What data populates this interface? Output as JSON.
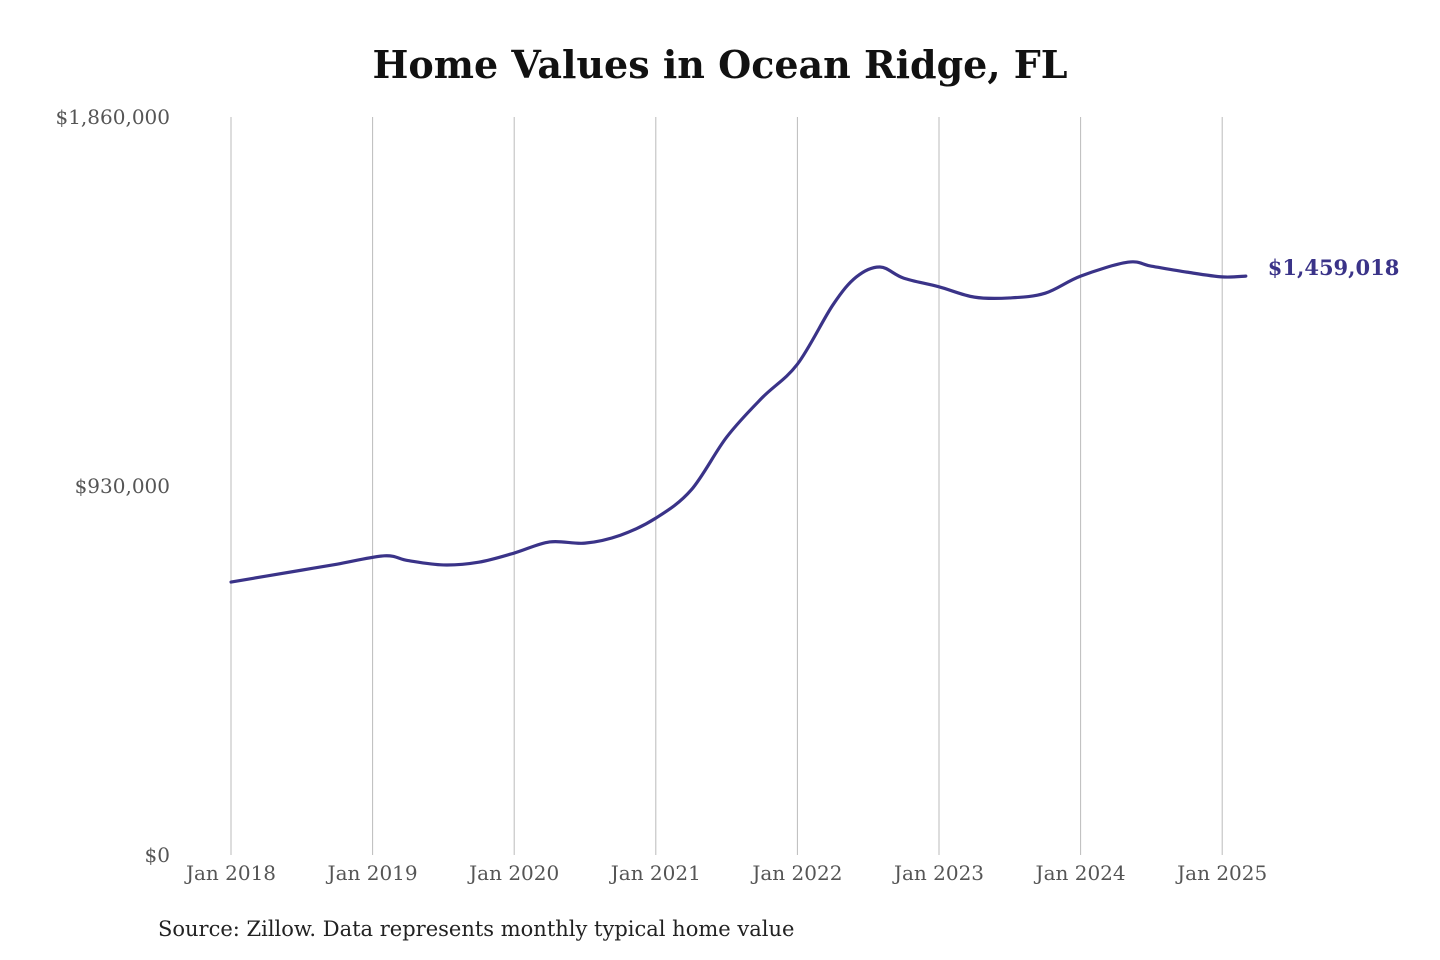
{
  "chart_data": {
    "type": "line",
    "title": "Home Values in Ocean Ridge, FL",
    "xlabel": "",
    "ylabel": "",
    "ylim": [
      0,
      1860000
    ],
    "y_ticks": [
      "$0",
      "$930,000",
      "$1,860,000"
    ],
    "y_tick_values": [
      0,
      930000,
      1860000
    ],
    "x_ticks": [
      "Jan 2018",
      "Jan 2019",
      "Jan 2020",
      "Jan 2021",
      "Jan 2022",
      "Jan 2023",
      "Jan 2024",
      "Jan 2025"
    ],
    "grid": "vertical",
    "legend": "none",
    "series": [
      {
        "name": "Typical home value",
        "color": "#3a3388",
        "x": [
          "2018-01",
          "2018-04",
          "2018-07",
          "2018-10",
          "2019-02",
          "2019-04",
          "2019-07",
          "2019-10",
          "2020-01",
          "2020-04",
          "2020-07",
          "2020-10",
          "2021-01",
          "2021-04",
          "2021-07",
          "2021-10",
          "2022-01",
          "2022-04",
          "2022-06",
          "2022-08",
          "2022-10",
          "2023-01",
          "2023-04",
          "2023-07",
          "2023-10",
          "2024-01",
          "2024-05",
          "2024-07",
          "2024-10",
          "2025-01",
          "2025-03"
        ],
        "values": [
          688000,
          703000,
          718000,
          733000,
          754000,
          742000,
          731000,
          738000,
          761000,
          789000,
          786000,
          806000,
          849000,
          920000,
          1053000,
          1152000,
          1237000,
          1386000,
          1457000,
          1482000,
          1454000,
          1432000,
          1406000,
          1404000,
          1416000,
          1459000,
          1494000,
          1484000,
          1469000,
          1457000,
          1459018
        ]
      }
    ],
    "annotations": [
      "$1,459,018"
    ]
  },
  "source": "Source: Zillow. Data represents monthly typical home value"
}
